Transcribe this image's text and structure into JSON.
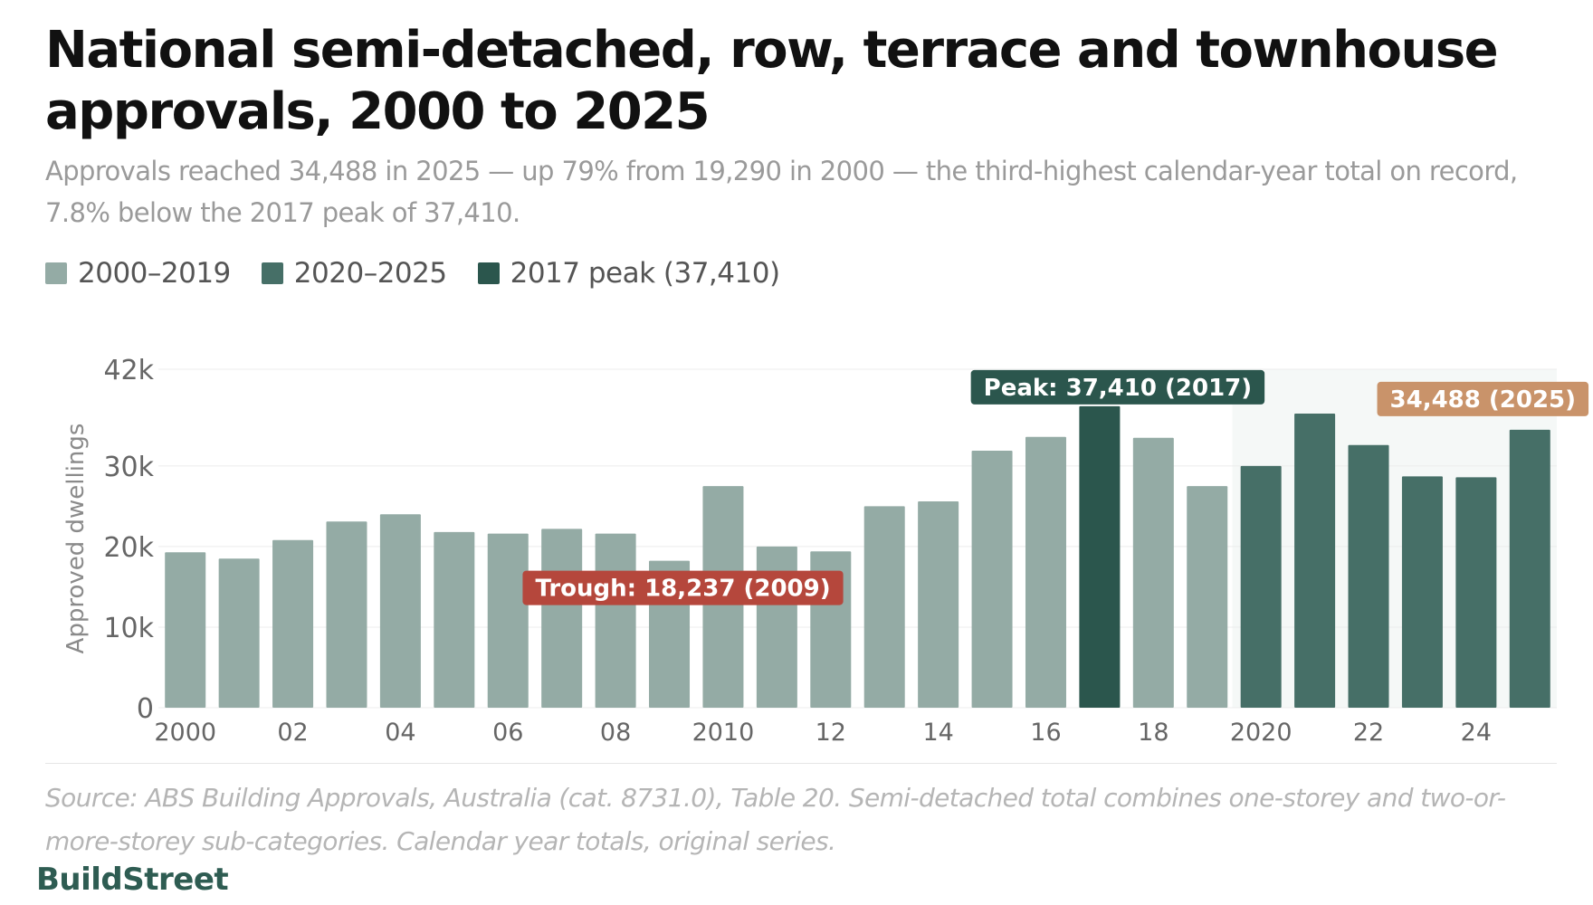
{
  "title": "National semi-detached, row, terrace and townhouse approvals, 2000 to 2025",
  "subtitle": "Approvals reached 34,488 in 2025 — up 79% from 19,290 in 2000 — the third-highest calendar-year total on record, 7.8% below the 2017 peak of 37,410.",
  "legend": [
    {
      "label": "2000–2019",
      "color": "#94aba5"
    },
    {
      "label": "2020–2025",
      "color": "#466f67"
    },
    {
      "label": "2017 peak (37,410)",
      "color": "#2b564d"
    }
  ],
  "chart_data": {
    "type": "bar",
    "categories": [
      "2000",
      "2001",
      "2002",
      "2003",
      "2004",
      "2005",
      "2006",
      "2007",
      "2008",
      "2009",
      "2010",
      "2011",
      "2012",
      "2013",
      "2014",
      "2015",
      "2016",
      "2017",
      "2018",
      "2019",
      "2020",
      "2021",
      "2022",
      "2023",
      "2024",
      "2025"
    ],
    "tick_labels": [
      "2000",
      "",
      "02",
      "",
      "04",
      "",
      "06",
      "",
      "08",
      "",
      "2010",
      "",
      "12",
      "",
      "14",
      "",
      "16",
      "",
      "18",
      "",
      "2020",
      "",
      "22",
      "",
      "24",
      ""
    ],
    "values": [
      19290,
      18500,
      20800,
      23100,
      24000,
      21800,
      21600,
      22200,
      21600,
      18237,
      27500,
      20000,
      19400,
      25000,
      25600,
      31900,
      33600,
      37410,
      33500,
      27500,
      30000,
      36500,
      32600,
      28700,
      28600,
      34488
    ],
    "ylabel": "Approved dwellings",
    "ylim": [
      0,
      42000
    ],
    "yticks": [
      0,
      10000,
      20000,
      30000,
      42000
    ],
    "ytick_labels": [
      "0",
      "10k",
      "20k",
      "30k",
      "42k"
    ],
    "grid": true,
    "colors": {
      "base": "#94aba5",
      "recent": "#466f67",
      "peak": "#2b564d",
      "trough": "#b5473c",
      "latest": "#c9936a",
      "recent_band": "#f5f8f7"
    },
    "annotations": {
      "peak": "Peak: 37,410 (2017)",
      "trough": "Trough: 18,237 (2009)",
      "latest": "34,488 (2025)"
    }
  },
  "source": "Source: ABS Building Approvals, Australia (cat. 8731.0), Table 20. Semi-detached total combines one-storey and two-or-more-storey sub-categories. Calendar year totals, original series.",
  "brand": "BuildStreet"
}
